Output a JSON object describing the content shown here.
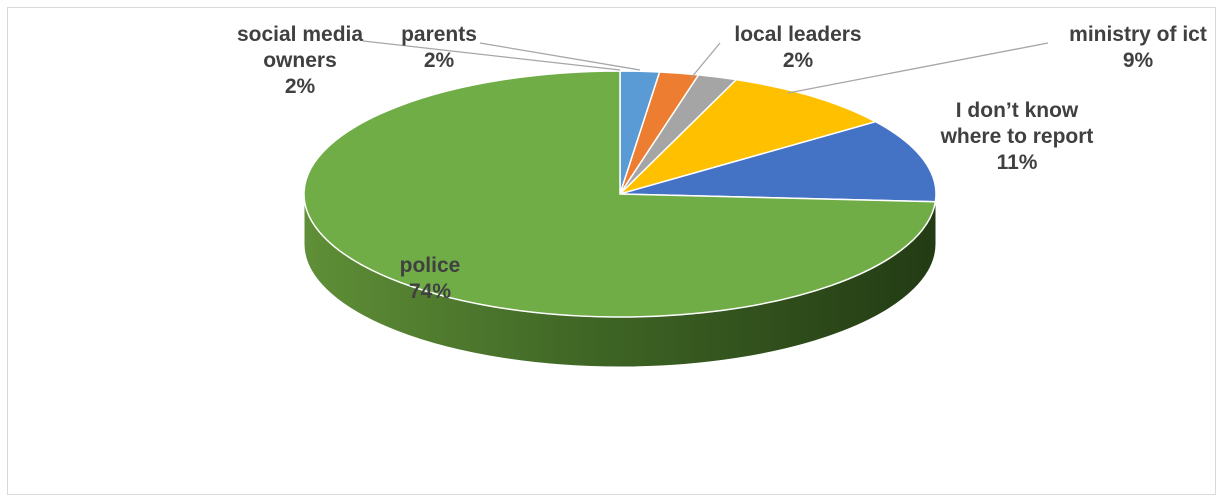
{
  "chart_data": {
    "type": "pie",
    "style": "3d",
    "title": "",
    "slices": [
      {
        "label": "social media owners",
        "label_lines": [
          "social media",
          "owners"
        ],
        "value": 2,
        "percent_text": "2%",
        "color": "#5b9bd5"
      },
      {
        "label": "parents",
        "label_lines": [
          "parents"
        ],
        "value": 2,
        "percent_text": "2%",
        "color": "#ed7d31"
      },
      {
        "label": "local leaders",
        "label_lines": [
          "local leaders"
        ],
        "value": 2,
        "percent_text": "2%",
        "color": "#a5a5a5"
      },
      {
        "label": "ministry of ict",
        "label_lines": [
          "ministry of ict"
        ],
        "value": 9,
        "percent_text": "9%",
        "color": "#ffc000"
      },
      {
        "label": "I don’t know where to report",
        "label_lines": [
          "I don’t know",
          "where to report"
        ],
        "value": 11,
        "percent_text": "11%",
        "color": "#4472c4"
      },
      {
        "label": "police",
        "label_lines": [
          "police"
        ],
        "value": 74,
        "percent_text": "74%",
        "color": "#70ad47"
      }
    ]
  }
}
